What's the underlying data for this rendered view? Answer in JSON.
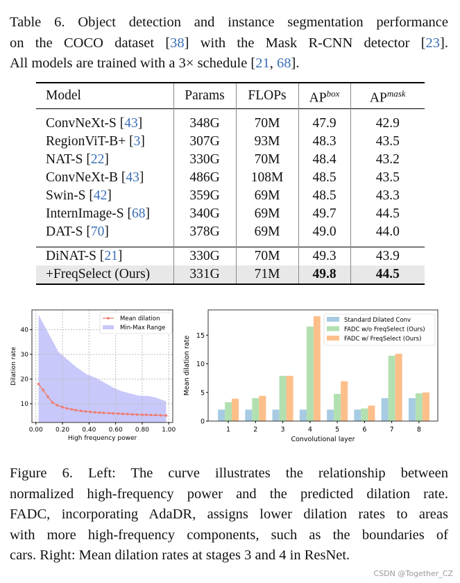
{
  "table_caption": {
    "lines": [
      [
        "Table 6. Object detection and instance segmentation performance",
        ""
      ],
      [
        "on the COCO dataset [",
        "38",
        "] with the Mask R-CNN detector [",
        "23",
        "]."
      ],
      [
        "All models are trained with a 3× schedule [",
        "21",
        ", ",
        "68",
        "]."
      ]
    ]
  },
  "table": {
    "headers": [
      "Model",
      "Params",
      "FLOPs",
      "AP",
      "box",
      "AP",
      "mask"
    ],
    "rows": [
      {
        "model": "ConvNeXt-S",
        "ref": "43",
        "params": "348G",
        "flops": "70M",
        "apbox": "47.9",
        "apmask": "42.9"
      },
      {
        "model": "RegionViT-B+",
        "ref": "3",
        "params": "307G",
        "flops": "93M",
        "apbox": "48.3",
        "apmask": "43.5"
      },
      {
        "model": "NAT-S",
        "ref": "22",
        "params": "330G",
        "flops": "70M",
        "apbox": "48.4",
        "apmask": "43.2"
      },
      {
        "model": "ConvNeXt-B",
        "ref": "43",
        "params": "486G",
        "flops": "108M",
        "apbox": "48.5",
        "apmask": "43.5"
      },
      {
        "model": "Swin-S",
        "ref": "42",
        "params": "359G",
        "flops": "69M",
        "apbox": "48.5",
        "apmask": "43.3"
      },
      {
        "model": "InternImage-S",
        "ref": "68",
        "params": "340G",
        "flops": "69M",
        "apbox": "49.7",
        "apmask": "44.5"
      },
      {
        "model": "DAT-S",
        "ref": "70",
        "params": "378G",
        "flops": "69M",
        "apbox": "49.0",
        "apmask": "44.0"
      }
    ],
    "rows2": [
      {
        "model": "DiNAT-S",
        "ref": "21",
        "params": "330G",
        "flops": "70M",
        "apbox": "49.3",
        "apmask": "43.9"
      },
      {
        "model": "+FreqSelect (Ours)",
        "params": "331G",
        "flops": "71M",
        "apbox": "49.8",
        "apmask": "44.5",
        "highlight": true
      }
    ]
  },
  "chart_data": [
    {
      "type": "line",
      "xlabel": "High frequency power",
      "ylabel": "Dilation rate",
      "xlim": [
        -0.03,
        1.03
      ],
      "ylim": [
        2.4,
        48
      ],
      "xticks": [
        "0.00",
        "0.20",
        "0.40",
        "0.60",
        "0.80",
        "1.00"
      ],
      "yticks": [
        "10",
        "20",
        "30",
        "40"
      ],
      "grid": true,
      "legend": "top-right",
      "series": [
        {
          "name": "Mean dilation",
          "color": "#f07c6c",
          "x": [
            0.02,
            0.055,
            0.09,
            0.125,
            0.16,
            0.2,
            0.235,
            0.27,
            0.3,
            0.34,
            0.375,
            0.41,
            0.445,
            0.48,
            0.51,
            0.55,
            0.58,
            0.62,
            0.655,
            0.69,
            0.725,
            0.76,
            0.8,
            0.83,
            0.865,
            0.9,
            0.94,
            0.98
          ],
          "y": [
            18,
            15.5,
            12.8,
            10.5,
            9.4,
            8.6,
            8.1,
            7.7,
            7.4,
            7.1,
            6.9,
            6.7,
            6.5,
            6.4,
            6.3,
            6.2,
            6.1,
            6.0,
            5.9,
            5.8,
            5.7,
            5.6,
            5.5,
            5.5,
            5.4,
            5.4,
            5.3,
            5.2
          ]
        },
        {
          "name": "Min-Max Range",
          "color": "#c8c8fa",
          "type": "area",
          "x": [
            0.02,
            0.1,
            0.17,
            0.3,
            0.38,
            0.45,
            0.6,
            0.65,
            0.77,
            0.85,
            0.9,
            0.98
          ],
          "upper": [
            46,
            38,
            31,
            25,
            22,
            20.5,
            16,
            15,
            13.3,
            13.1,
            12.5,
            11
          ],
          "lower": [
            2.5,
            2.5,
            2.5,
            2.5,
            2.5,
            2.5,
            2.5,
            2.5,
            2.5,
            2.5,
            2.5,
            2.5
          ]
        }
      ]
    },
    {
      "type": "bar",
      "xlabel": "Convolutional layer",
      "ylabel": "Mean dilation rate",
      "categories": [
        "1",
        "2",
        "3",
        "4",
        "5",
        "6",
        "7",
        "8"
      ],
      "ylim": [
        0,
        19.4
      ],
      "yticks": [
        "0",
        "5",
        "10",
        "15"
      ],
      "legend": "top-right",
      "series": [
        {
          "name": "Standard Dilated Conv",
          "color": "#a6cbe3",
          "values": [
            2,
            2,
            2,
            2,
            2,
            2,
            4,
            4
          ]
        },
        {
          "name": "FADC w/o FreqSelect (Ours)",
          "color": "#b2e0b0",
          "values": [
            3.3,
            4.0,
            7.9,
            16.5,
            4.75,
            2.2,
            11.4,
            4.85
          ]
        },
        {
          "name": "FADC w/ FreqSelect (Ours)",
          "color": "#fdbf8a",
          "values": [
            3.9,
            4.4,
            7.9,
            18.3,
            6.95,
            2.7,
            11.75,
            5.0
          ]
        }
      ]
    }
  ],
  "figure_caption": {
    "lines": [
      "Figure 6. Left: The curve illustrates the relationship between",
      "normalized high-frequency power and the predicted dilation rate.",
      "FADC, incorporating AdaDR, assigns lower dilation rates to areas",
      "with more high-frequency components, such as the boundaries of",
      "cars. Right: Mean dilation rates at stages 3 and 4 in ResNet."
    ]
  },
  "watermark": "CSDN @Together_CZ"
}
